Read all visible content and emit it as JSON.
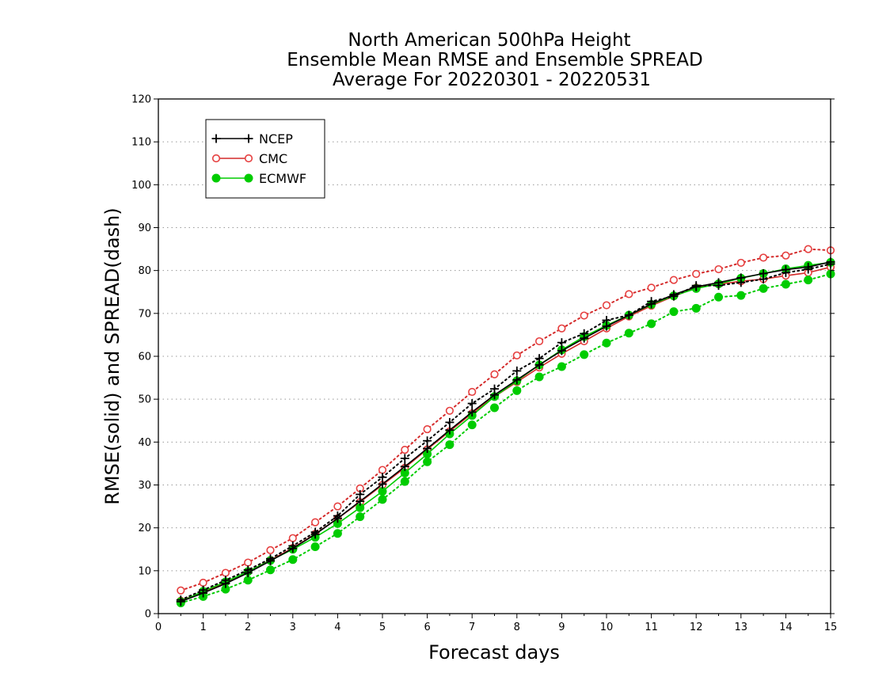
{
  "chart_data": {
    "type": "line",
    "title_lines": [
      "North American 500hPa Height",
      "Ensemble Mean RMSE and Ensemble SPREAD",
      "Average For 20220301 - 20220531"
    ],
    "xlabel": "Forecast days",
    "ylabel": "RMSE(solid) and SPREAD(dash)",
    "xlim": [
      0,
      15
    ],
    "ylim": [
      0,
      120
    ],
    "xticks": [
      "0",
      "1",
      "2",
      "3",
      "4",
      "5",
      "6",
      "7",
      "8",
      "9",
      "10",
      "11",
      "12",
      "13",
      "14",
      "15"
    ],
    "yticks": [
      "0",
      "10",
      "20",
      "30",
      "40",
      "50",
      "60",
      "70",
      "80",
      "90",
      "100",
      "110",
      "120"
    ],
    "grid": "horizontal dotted",
    "legend_position": "top-left",
    "x": [
      0.5,
      1,
      1.5,
      2,
      2.5,
      3,
      3.5,
      4,
      4.5,
      5,
      5.5,
      6,
      6.5,
      7,
      7.5,
      8,
      8.5,
      9,
      9.5,
      10,
      10.5,
      11,
      11.5,
      12,
      12.5,
      13,
      13.5,
      14,
      14.5,
      15
    ],
    "series": [
      {
        "name": "NCEP",
        "color": "#000000",
        "marker": "plus",
        "rmse": [
          2.8,
          4.8,
          7.0,
          9.5,
          12.3,
          15.2,
          18.5,
          22.2,
          26.2,
          30.2,
          34.3,
          38.5,
          42.8,
          47.0,
          51.0,
          54.5,
          58.0,
          61.3,
          64.2,
          67.0,
          69.6,
          72.2,
          74.4,
          76.2,
          77.2,
          78.3,
          79.3,
          80.2,
          80.8,
          82.0
        ],
        "spread": [
          3.2,
          5.5,
          7.8,
          10.2,
          12.8,
          15.8,
          19.0,
          22.8,
          27.8,
          31.8,
          36.2,
          40.3,
          44.6,
          49.0,
          52.4,
          56.6,
          59.5,
          63.2,
          65.3,
          68.4,
          69.6,
          72.8,
          74.0,
          76.5,
          76.5,
          77.2,
          78.0,
          79.5,
          80.3,
          81.5
        ]
      },
      {
        "name": "CMC",
        "color": "#e64040",
        "marker": "circle-open",
        "rmse": [
          3.0,
          5.0,
          7.3,
          9.8,
          12.5,
          15.3,
          18.6,
          22.2,
          26.0,
          30.0,
          34.0,
          38.3,
          42.5,
          46.7,
          50.6,
          54.0,
          57.4,
          60.6,
          63.5,
          66.5,
          69.3,
          71.8,
          74.0,
          76.0,
          76.8,
          77.5,
          78.0,
          78.8,
          79.5,
          80.8
        ],
        "spread": [
          5.4,
          7.2,
          9.5,
          11.9,
          14.8,
          17.6,
          21.3,
          25.0,
          29.2,
          33.5,
          38.2,
          43.0,
          47.3,
          51.7,
          55.8,
          60.2,
          63.5,
          66.5,
          69.5,
          71.9,
          74.5,
          76.0,
          77.8,
          79.2,
          80.3,
          81.8,
          83.0,
          83.5,
          85.0,
          84.7
        ]
      },
      {
        "name": "ECMWF",
        "color": "#00cc00",
        "marker": "circle-filled",
        "rmse": [
          2.8,
          5.2,
          7.4,
          9.8,
          12.4,
          15.0,
          17.8,
          21.0,
          24.7,
          28.5,
          32.8,
          37.2,
          41.9,
          46.2,
          50.6,
          54.3,
          58.0,
          61.5,
          64.6,
          67.2,
          69.6,
          72.1,
          74.1,
          75.8,
          76.9,
          78.2,
          79.3,
          80.4,
          81.2,
          81.9
        ],
        "spread": [
          2.5,
          4.0,
          5.7,
          7.8,
          10.2,
          12.6,
          15.6,
          18.7,
          22.6,
          26.6,
          30.8,
          35.4,
          39.4,
          44.0,
          48.0,
          52.0,
          55.2,
          57.6,
          60.4,
          63.1,
          65.4,
          67.6,
          70.4,
          71.2,
          73.8,
          74.2,
          75.8,
          76.8,
          77.8,
          79.2
        ]
      }
    ]
  }
}
